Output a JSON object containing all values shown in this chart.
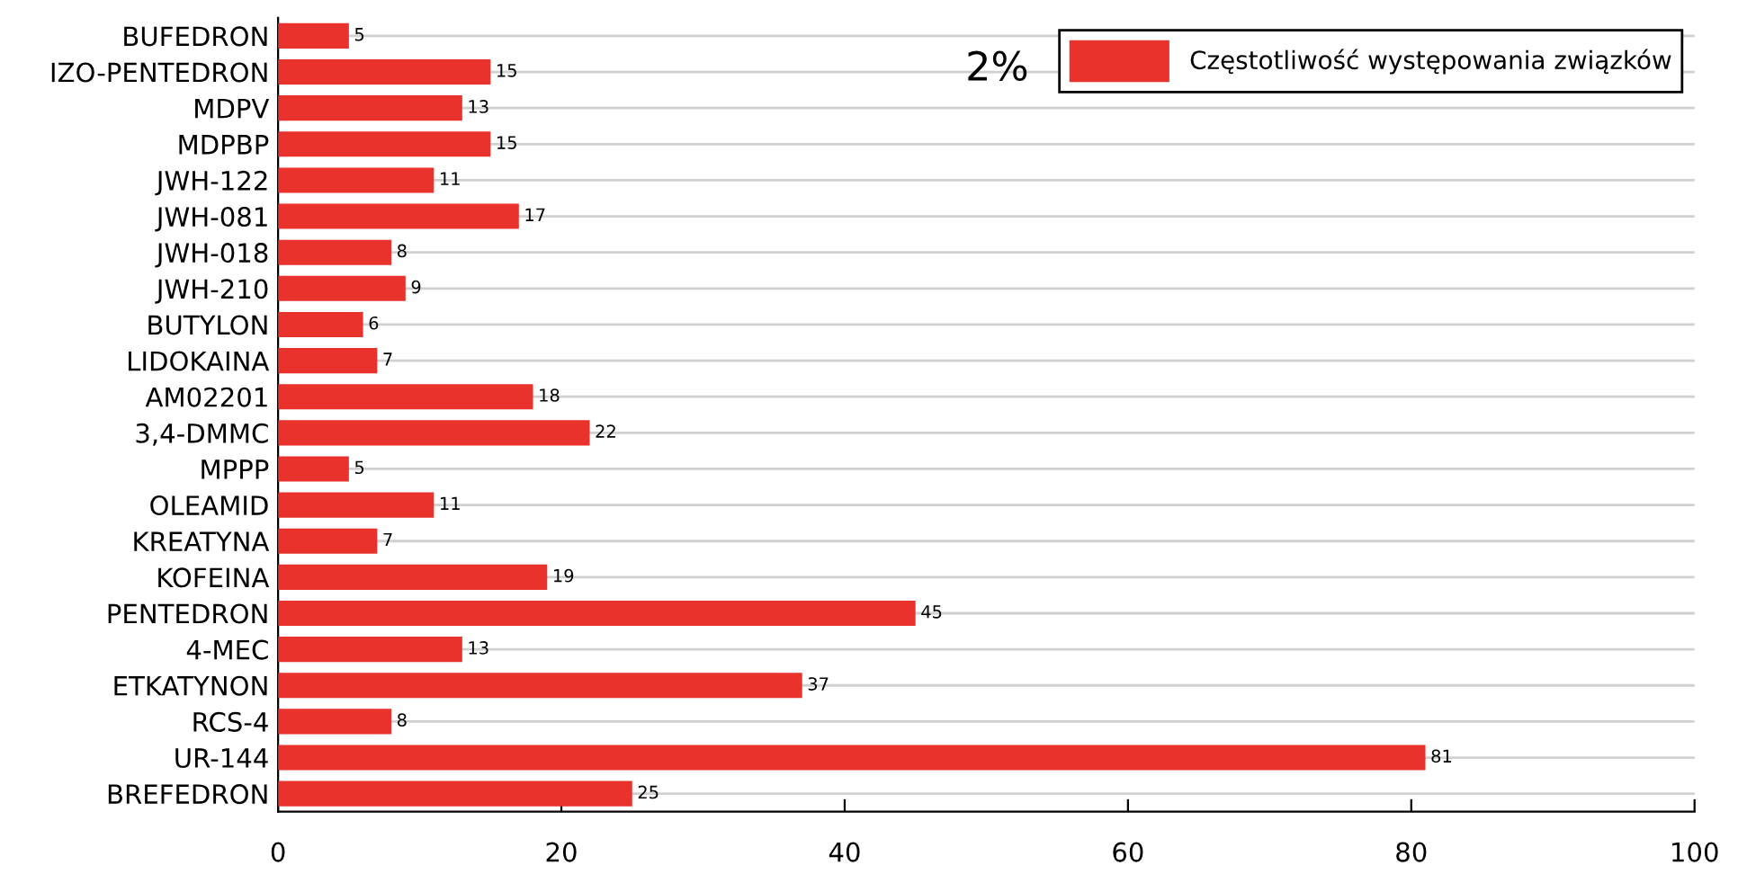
{
  "chart_data": {
    "type": "bar",
    "orientation": "horizontal",
    "categories": [
      "BUFEDRON",
      "IZO-PENTEDRON",
      "MDPV",
      "MDPBP",
      "JWH-122",
      "JWH-081",
      "JWH-018",
      "JWH-210",
      "BUTYLON",
      "LIDOKAINA",
      "AM02201",
      "3,4-DMMC",
      "MPPP",
      "OLEAMID",
      "KREATYNA",
      "KOFEINA",
      "PENTEDRON",
      "4-MEC",
      "ETKATYNON",
      "RCS-4",
      "UR-144",
      "BREFEDRON"
    ],
    "series": [
      {
        "name": "Częstotliwość występowania związków",
        "color": "#e8322b",
        "values": [
          5,
          15,
          13,
          15,
          11,
          17,
          8,
          9,
          6,
          7,
          18,
          22,
          5,
          11,
          7,
          19,
          45,
          13,
          37,
          8,
          81,
          25
        ]
      }
    ],
    "xlim": [
      0,
      100
    ],
    "xticks": [
      0,
      20,
      40,
      60,
      80,
      100
    ],
    "grid": "y",
    "legend": "top right",
    "data_labels": true,
    "annotations": [
      "2%"
    ]
  }
}
